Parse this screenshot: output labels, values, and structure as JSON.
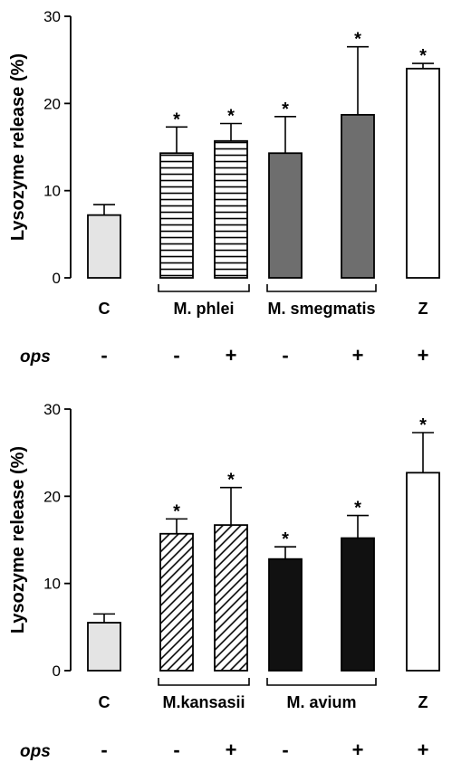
{
  "chart_data": [
    {
      "type": "bar",
      "ylabel": "Lysozyme release (%)",
      "ylim": [
        0,
        30
      ],
      "yticks": [
        "0",
        "10",
        "20",
        "30"
      ],
      "bars": [
        {
          "label": "C",
          "value": 7.2,
          "error": 1.2,
          "significant": false,
          "pattern": "light-gray",
          "ops": "-"
        },
        {
          "label": "",
          "value": 14.3,
          "error": 3.0,
          "significant": true,
          "pattern": "horizontal-lines",
          "ops": "-"
        },
        {
          "label": "",
          "value": 15.7,
          "error": 2.0,
          "significant": true,
          "pattern": "horizontal-lines",
          "ops": "+"
        },
        {
          "label": "",
          "value": 14.3,
          "error": 4.2,
          "significant": true,
          "pattern": "dark-gray",
          "ops": "-"
        },
        {
          "label": "",
          "value": 18.7,
          "error": 7.8,
          "significant": true,
          "pattern": "dark-gray",
          "ops": "+"
        },
        {
          "label": "Z",
          "value": 24.0,
          "error": 0.6,
          "significant": true,
          "pattern": "white",
          "ops": "+"
        }
      ],
      "groups": [
        {
          "label": "M. phlei",
          "bars": [
            1,
            2
          ]
        },
        {
          "label": "M. smegmatis",
          "bars": [
            3,
            4
          ]
        }
      ],
      "ops_label": "ops",
      "significance_marker": "*",
      "colors": {
        "light-gray": "#e4e4e4",
        "dark-gray": "#6e6e6e",
        "white": "#ffffff",
        "black": "#111111"
      }
    },
    {
      "type": "bar",
      "ylabel": "Lysozyme release (%)",
      "ylim": [
        0,
        30
      ],
      "yticks": [
        "0",
        "10",
        "20",
        "30"
      ],
      "bars": [
        {
          "label": "C",
          "value": 5.5,
          "error": 1.0,
          "significant": false,
          "pattern": "light-gray",
          "ops": "-"
        },
        {
          "label": "",
          "value": 15.7,
          "error": 1.7,
          "significant": true,
          "pattern": "diagonal-lines",
          "ops": "-"
        },
        {
          "label": "",
          "value": 16.7,
          "error": 4.3,
          "significant": true,
          "pattern": "diagonal-lines",
          "ops": "+"
        },
        {
          "label": "",
          "value": 12.8,
          "error": 1.4,
          "significant": true,
          "pattern": "black",
          "ops": "-"
        },
        {
          "label": "",
          "value": 15.2,
          "error": 2.6,
          "significant": true,
          "pattern": "black",
          "ops": "+"
        },
        {
          "label": "Z",
          "value": 22.7,
          "error": 4.6,
          "significant": true,
          "pattern": "white",
          "ops": "+"
        }
      ],
      "groups": [
        {
          "label": "M.kansasii",
          "bars": [
            1,
            2
          ]
        },
        {
          "label": "M. avium",
          "bars": [
            3,
            4
          ]
        }
      ],
      "ops_label": "ops",
      "significance_marker": "*",
      "colors": {
        "light-gray": "#e4e4e4",
        "dark-gray": "#6e6e6e",
        "white": "#ffffff",
        "black": "#111111"
      }
    }
  ]
}
